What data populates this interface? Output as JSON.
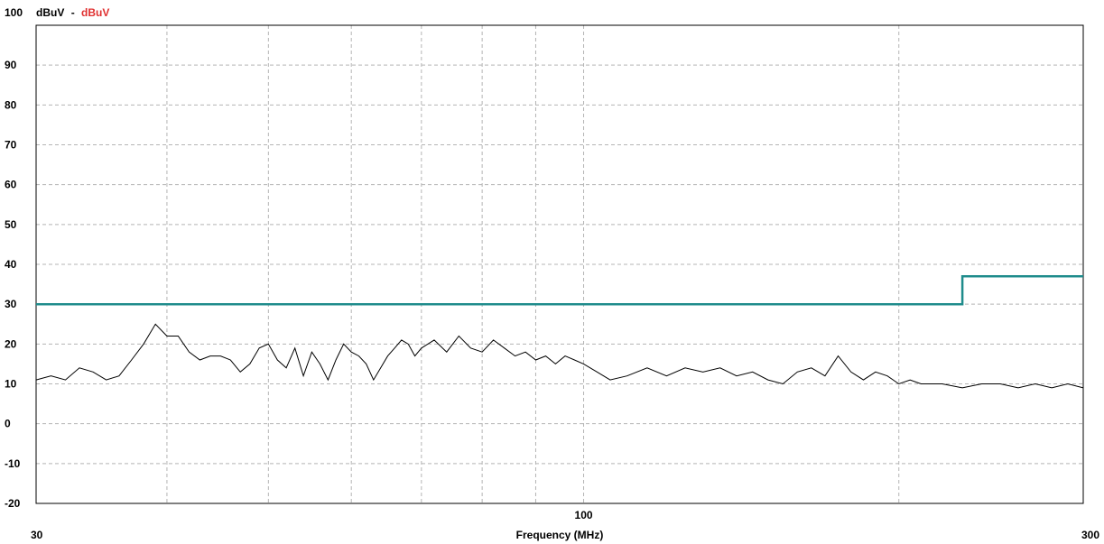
{
  "chart_data": {
    "type": "line",
    "header": {
      "top_value": "100",
      "unit_primary": "dBuV",
      "separator": "-",
      "unit_secondary": "dBuV"
    },
    "xlabel": "Frequency (MHz)",
    "x_scale": "log",
    "xlim": [
      30,
      300
    ],
    "ylim": [
      -20,
      100
    ],
    "x_tick_labels": [
      {
        "value": 30,
        "label": "30"
      },
      {
        "value": 100,
        "label": "100"
      },
      {
        "value": 300,
        "label": "300"
      }
    ],
    "x_gridlines": [
      40,
      50,
      60,
      70,
      80,
      90,
      100,
      200
    ],
    "y_tick_labels": [
      {
        "value": 90,
        "label": "90"
      },
      {
        "value": 80,
        "label": "80"
      },
      {
        "value": 70,
        "label": "70"
      },
      {
        "value": 60,
        "label": "60"
      },
      {
        "value": 50,
        "label": "50"
      },
      {
        "value": 40,
        "label": "40"
      },
      {
        "value": 30,
        "label": "30"
      },
      {
        "value": 20,
        "label": "20"
      },
      {
        "value": 10,
        "label": "10"
      },
      {
        "value": 0,
        "label": "0"
      },
      {
        "value": -10,
        "label": "-10"
      },
      {
        "value": -20,
        "label": "-20"
      }
    ],
    "grid": true,
    "colors": {
      "measurement": "#000000",
      "limit": "#1f8c8c",
      "unit_secondary": "#e03030",
      "grid": "#b4b4b4"
    },
    "series": [
      {
        "id": "limit",
        "style": "step",
        "x": [
          30,
          230,
          230,
          300
        ],
        "y": [
          30,
          30,
          37,
          37
        ]
      },
      {
        "id": "measurement",
        "x": [
          30,
          31,
          32,
          33,
          34,
          35,
          36,
          37,
          38,
          39,
          40,
          41,
          42,
          43,
          44,
          45,
          46,
          47,
          48,
          49,
          50,
          51,
          52,
          53,
          54,
          55,
          56,
          57,
          58,
          59,
          60,
          61,
          62,
          63,
          64,
          65,
          66,
          67,
          68,
          69,
          70,
          72,
          74,
          76,
          78,
          80,
          82,
          84,
          86,
          88,
          90,
          92,
          94,
          96,
          98,
          100,
          103,
          106,
          110,
          115,
          120,
          125,
          130,
          135,
          140,
          145,
          150,
          155,
          160,
          165,
          170,
          175,
          180,
          185,
          190,
          195,
          200,
          205,
          210,
          220,
          230,
          240,
          250,
          260,
          270,
          280,
          290,
          300
        ],
        "y": [
          11,
          12,
          11,
          14,
          13,
          11,
          12,
          16,
          20,
          25,
          22,
          22,
          18,
          16,
          17,
          17,
          16,
          13,
          15,
          19,
          20,
          16,
          14,
          19,
          12,
          18,
          15,
          11,
          16,
          20,
          18,
          17,
          15,
          11,
          14,
          17,
          19,
          21,
          20,
          17,
          19,
          21,
          18,
          22,
          19,
          18,
          21,
          19,
          17,
          18,
          16,
          17,
          15,
          17,
          16,
          15,
          13,
          11,
          12,
          14,
          12,
          14,
          13,
          14,
          12,
          13,
          11,
          10,
          13,
          14,
          12,
          17,
          13,
          11,
          13,
          12,
          10,
          11,
          10,
          10,
          9,
          10,
          10,
          9,
          10,
          9,
          10,
          9
        ]
      }
    ]
  }
}
